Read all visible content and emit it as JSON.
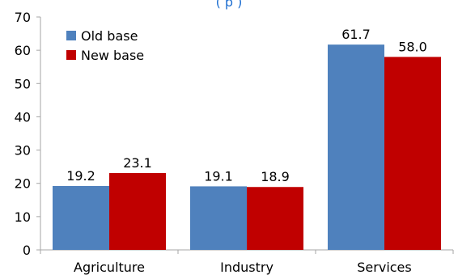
{
  "chart_data": {
    "type": "bar",
    "title_fragment": "(                           p       )",
    "categories": [
      "Agriculture",
      "Industry",
      "Services"
    ],
    "series": [
      {
        "name": "Old base",
        "values": [
          19.2,
          19.1,
          61.7
        ],
        "color": "#4F81BD"
      },
      {
        "name": "New base",
        "values": [
          23.1,
          18.9,
          58.0
        ],
        "color": "#C00000"
      }
    ],
    "data_labels": [
      [
        "19.2",
        "19.1",
        "61.7"
      ],
      [
        "23.1",
        "18.9",
        "58.0"
      ]
    ],
    "ylim": [
      0,
      70
    ],
    "yticks": [
      "0",
      "10",
      "20",
      "30",
      "40",
      "50",
      "60",
      "70"
    ],
    "grid": false,
    "legend_position": "top-left"
  }
}
